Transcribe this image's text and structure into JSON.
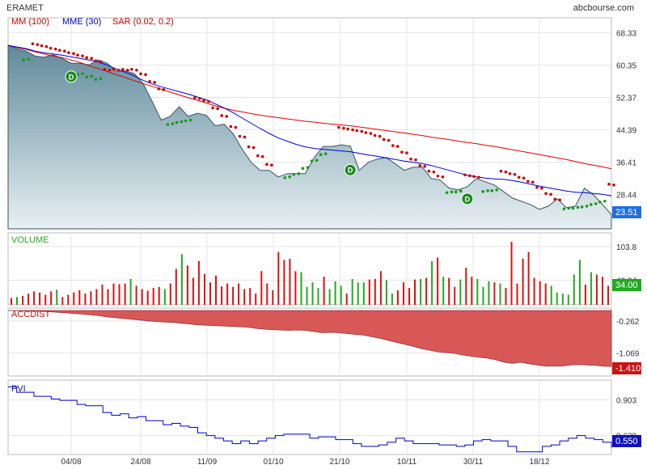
{
  "title": "ERAMET",
  "source": "abcbourse.com",
  "legend": [
    {
      "label": "MM (100)",
      "color": "#dd0000"
    },
    {
      "label": "MME (30)",
      "color": "#0000cc"
    },
    {
      "label": "SAR (0.02, 0.2)",
      "color": "#cc0000"
    }
  ],
  "x_ticks": [
    "04/08",
    "24/08",
    "11/09",
    "01/10",
    "21/10",
    "10/11",
    "30/11",
    "18/12"
  ],
  "colors": {
    "price_fill": "#7fa7b7",
    "sar_up": "#1a9a1a",
    "sar_down": "#cc0000",
    "volume_up": "#22aa22",
    "volume_down": "#dd1111",
    "accdist_fill": "#d85858",
    "pvi_line": "#0000cc",
    "last_price_badge": "#1f6fe0",
    "last_volume_badge": "#22aa22",
    "last_accdist_badge": "#cc1111",
    "last_pvi_badge": "#1010bb",
    "dividend_marker": "#1a8a1a"
  },
  "dividend_marker_label": "D",
  "chart_data": [
    {
      "type": "area",
      "panel": "price",
      "yticks": [
        68.33,
        60.35,
        52.37,
        44.39,
        36.41,
        28.44
      ],
      "ylim": [
        20.0,
        72.0
      ],
      "last_value": "23.51",
      "series": [
        {
          "name": "ERAMET",
          "values": [
            65.2,
            64.4,
            63.8,
            62.6,
            62.3,
            62.9,
            62.0,
            60.8,
            60.8,
            60.4,
            61.6,
            60.8,
            58.9,
            58.9,
            58.3,
            55.8,
            51.4,
            46.8,
            47.7,
            50.1,
            47.7,
            48.5,
            48.0,
            45.4,
            45.8,
            43.4,
            39.6,
            36.4,
            34.4,
            34.4,
            32.8,
            33.6,
            33.6,
            33.6,
            37.6,
            40.3,
            40.3,
            40.7,
            40.4,
            34.4,
            36.4,
            37.2,
            37.6,
            36.0,
            34.4,
            35.2,
            35.2,
            32.4,
            32.0,
            30.0,
            29.6,
            30.4,
            32.4,
            31.6,
            30.8,
            29.2,
            27.6,
            26.8,
            26.0,
            24.8,
            25.6,
            27.4,
            25.2,
            25.6,
            30.0,
            28.4,
            26.0,
            23.51
          ]
        },
        {
          "name": "MM (100)",
          "values": [
            65.2,
            64.7,
            64.2,
            63.6,
            63.1,
            62.6,
            62.2,
            61.6,
            61.0,
            60.2,
            59.5,
            58.8,
            58.0,
            57.3,
            56.5,
            55.8,
            55.1,
            54.4,
            53.7,
            53.0,
            52.3,
            51.7,
            51.0,
            50.3,
            49.7,
            49.2,
            48.8,
            48.4,
            48.0,
            47.7,
            47.4,
            47.1,
            46.8,
            46.5,
            46.3,
            46.0,
            45.8,
            45.6,
            45.4,
            45.1,
            44.8,
            44.5,
            44.2,
            43.9,
            43.6,
            43.3,
            43.0,
            42.6,
            42.3,
            42.0,
            41.6,
            41.3,
            41.0,
            40.6,
            40.3,
            39.9,
            39.5,
            39.1,
            38.7,
            38.3,
            37.9,
            37.5,
            37.1,
            36.6,
            36.1,
            35.7,
            35.3,
            34.8
          ]
        },
        {
          "name": "MME (30)",
          "values": [
            65.2,
            64.8,
            64.4,
            63.8,
            63.4,
            63.1,
            62.8,
            62.4,
            62.0,
            61.6,
            61.1,
            60.3,
            59.4,
            58.6,
            57.7,
            56.6,
            55.7,
            55.0,
            54.4,
            53.8,
            53.2,
            52.5,
            51.8,
            50.8,
            49.8,
            48.6,
            47.3,
            46.0,
            44.7,
            43.5,
            42.4,
            41.6,
            40.8,
            40.2,
            39.8,
            39.6,
            39.4,
            39.2,
            39.0,
            38.6,
            38.2,
            37.9,
            37.5,
            37.1,
            36.7,
            36.4,
            36.1,
            35.6,
            35.0,
            34.4,
            33.8,
            33.2,
            32.8,
            32.5,
            32.3,
            32.2,
            31.9,
            31.5,
            31.0,
            30.5,
            30.1,
            29.7,
            29.3,
            29.0,
            28.9,
            28.7,
            28.5,
            28.1
          ]
        }
      ],
      "sar": {
        "down": [
          [
            3,
            65.6
          ],
          [
            4,
            65.1
          ],
          [
            5,
            64.5
          ],
          [
            6,
            64.0
          ],
          [
            7,
            63.4
          ],
          [
            8,
            62.8
          ],
          [
            9,
            62.2
          ],
          [
            10,
            61.4
          ],
          [
            11,
            59.3
          ],
          [
            12,
            59.3
          ],
          [
            13,
            59.3
          ],
          [
            14,
            59.3
          ],
          [
            15,
            58.2
          ],
          [
            16,
            56.3
          ],
          [
            17,
            54.5
          ],
          [
            21,
            52.3
          ],
          [
            22,
            51.6
          ],
          [
            23,
            49.8
          ],
          [
            24,
            47.9
          ],
          [
            25,
            45.2
          ],
          [
            26,
            42.8
          ],
          [
            27,
            40.2
          ],
          [
            28,
            38.0
          ],
          [
            29,
            35.9
          ],
          [
            37,
            45.0
          ],
          [
            38,
            44.6
          ],
          [
            39,
            44.2
          ],
          [
            40,
            43.7
          ],
          [
            41,
            43.0
          ],
          [
            42,
            42.0
          ],
          [
            43,
            40.5
          ],
          [
            44,
            38.9
          ],
          [
            45,
            37.2
          ],
          [
            46,
            35.6
          ],
          [
            47,
            34.2
          ],
          [
            48,
            33.0
          ],
          [
            51,
            33.3
          ],
          [
            52,
            32.9
          ],
          [
            55,
            34.2
          ],
          [
            56,
            33.6
          ],
          [
            57,
            32.7
          ],
          [
            58,
            31.7
          ],
          [
            59,
            30.2
          ],
          [
            60,
            28.7
          ],
          [
            61,
            27.3
          ],
          [
            67,
            31.0
          ]
        ],
        "up": [
          [
            2,
            61.6
          ],
          [
            8,
            58.0
          ],
          [
            9,
            57.4
          ],
          [
            10,
            56.8
          ],
          [
            18,
            45.7
          ],
          [
            19,
            46.2
          ],
          [
            20,
            46.6
          ],
          [
            31,
            32.6
          ],
          [
            32,
            33.4
          ],
          [
            33,
            34.9
          ],
          [
            34,
            36.7
          ],
          [
            35,
            38.3
          ],
          [
            49,
            28.9
          ],
          [
            50,
            29.1
          ],
          [
            53,
            29.2
          ],
          [
            54,
            29.4
          ],
          [
            62,
            24.9
          ],
          [
            63,
            25.1
          ],
          [
            64,
            25.4
          ],
          [
            65,
            26.0
          ],
          [
            66,
            26.6
          ]
        ]
      },
      "dividend_markers": [
        {
          "x": 7,
          "y": 57.5
        },
        {
          "x": 38,
          "y": 34.5
        },
        {
          "x": 51,
          "y": 27.4
        }
      ]
    },
    {
      "type": "bar",
      "panel": "volume",
      "title": "VOLUME",
      "yticks": [
        103.8,
        43.84
      ],
      "ylim": [
        0,
        128
      ],
      "last_value": "34.00",
      "values": [
        12,
        14,
        16,
        20,
        24,
        22,
        18,
        24,
        27,
        14,
        18,
        22,
        26,
        20,
        24,
        28,
        36,
        28,
        38,
        37,
        38,
        46,
        34,
        28,
        25,
        30,
        32,
        28,
        38,
        64,
        90,
        70,
        48,
        78,
        55,
        40,
        52,
        33,
        38,
        32,
        38,
        28,
        30,
        20,
        60,
        38,
        26,
        94,
        80,
        82,
        60,
        58,
        32,
        40,
        30,
        50,
        28,
        42,
        34,
        20,
        46,
        40,
        40,
        45,
        46,
        60,
        44,
        20,
        26,
        40,
        30,
        45,
        46,
        48,
        78,
        84,
        50,
        48,
        32,
        45,
        66,
        50,
        46,
        32,
        42,
        40,
        38,
        30,
        112,
        38,
        82,
        94,
        48,
        42,
        38,
        34,
        22,
        20,
        18,
        54,
        80,
        36,
        58,
        54,
        50,
        34
      ],
      "up": [
        false,
        true,
        false,
        false,
        false,
        false,
        false,
        false,
        true,
        false,
        false,
        false,
        false,
        false,
        false,
        false,
        false,
        false,
        false,
        false,
        false,
        true,
        false,
        false,
        false,
        false,
        false,
        true,
        false,
        false,
        true,
        false,
        false,
        false,
        false,
        false,
        false,
        false,
        false,
        false,
        false,
        false,
        false,
        false,
        false,
        false,
        false,
        false,
        false,
        false,
        false,
        true,
        true,
        true,
        true,
        false,
        true,
        true,
        true,
        false,
        true,
        true,
        true,
        false,
        false,
        false,
        true,
        true,
        false,
        false,
        false,
        false,
        true,
        false,
        true,
        false,
        true,
        false,
        false,
        true,
        false,
        false,
        true,
        true,
        true,
        false,
        true,
        false,
        false,
        false,
        false,
        false,
        false,
        false,
        false,
        true,
        true,
        true,
        true,
        true,
        true,
        false,
        true,
        false,
        false,
        false
      ]
    },
    {
      "type": "area",
      "panel": "accdist",
      "title": "ACCDIST",
      "yticks": [
        -0.262,
        -1.069
      ],
      "ylim": [
        -1.65,
        0.0
      ],
      "last_value": "-1.410",
      "values": [
        0.0,
        -0.005,
        -0.01,
        -0.015,
        -0.02,
        -0.03,
        -0.045,
        -0.06,
        -0.075,
        -0.09,
        -0.11,
        -0.13,
        -0.16,
        -0.18,
        -0.2,
        -0.22,
        -0.24,
        -0.26,
        -0.28,
        -0.29,
        -0.3,
        -0.32,
        -0.34,
        -0.36,
        -0.37,
        -0.38,
        -0.39,
        -0.4,
        -0.41,
        -0.42,
        -0.45,
        -0.47,
        -0.48,
        -0.49,
        -0.5,
        -0.49,
        -0.5,
        -0.53,
        -0.56,
        -0.55,
        -0.56,
        -0.58,
        -0.6,
        -0.62,
        -0.66,
        -0.7,
        -0.75,
        -0.8,
        -0.85,
        -0.9,
        -0.96,
        -1.0,
        -1.04,
        -1.06,
        -1.08,
        -1.12,
        -1.15,
        -1.18,
        -1.2,
        -1.24,
        -1.3,
        -1.33,
        -1.3,
        -1.34,
        -1.37,
        -1.4,
        -1.4,
        -1.4,
        -1.37,
        -1.36,
        -1.37,
        -1.38,
        -1.4,
        -1.41
      ]
    },
    {
      "type": "line",
      "panel": "pvi",
      "title": "PVI",
      "yticks": [
        0.903,
        0.639
      ],
      "ylim": [
        0.5,
        1.05
      ],
      "last_value": "0.550",
      "values": [
        1.0,
        0.96,
        0.96,
        0.93,
        0.93,
        0.91,
        0.9,
        0.9,
        0.87,
        0.86,
        0.86,
        0.81,
        0.79,
        0.8,
        0.77,
        0.78,
        0.75,
        0.75,
        0.72,
        0.73,
        0.71,
        0.7,
        0.66,
        0.64,
        0.62,
        0.6,
        0.58,
        0.6,
        0.58,
        0.6,
        0.62,
        0.64,
        0.65,
        0.65,
        0.65,
        0.62,
        0.63,
        0.63,
        0.61,
        0.61,
        0.58,
        0.56,
        0.56,
        0.57,
        0.59,
        0.62,
        0.6,
        0.58,
        0.58,
        0.58,
        0.57,
        0.57,
        0.56,
        0.57,
        0.6,
        0.61,
        0.6,
        0.6,
        0.56,
        0.52,
        0.52,
        0.52,
        0.56,
        0.57,
        0.6,
        0.62,
        0.64,
        0.62,
        0.61,
        0.59,
        0.55
      ]
    }
  ]
}
